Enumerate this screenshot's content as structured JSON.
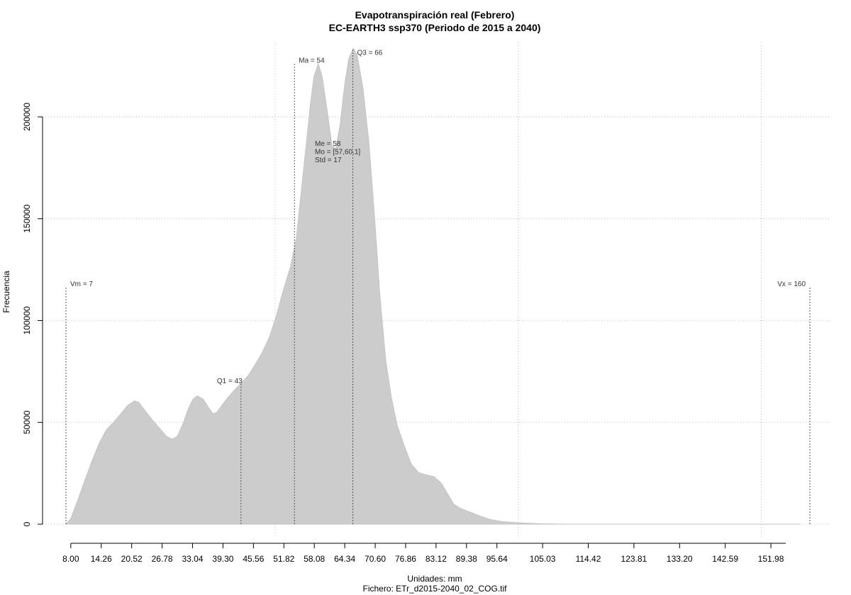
{
  "chart_data": {
    "type": "area",
    "title": "Evapotranspiración real (Febrero)",
    "subtitle": "EC-EARTH3 ssp370 (Periodo de 2015 a 2040)",
    "x_label": "Unidades: mm",
    "caption": "Fichero: ETr_d2015-2040_02_COG.tif",
    "y_label": "Frecuencia",
    "color": "#cccccc",
    "x": [
      7,
      8,
      9.5,
      10.9,
      12.4,
      13.9,
      15.3,
      16.8,
      18.2,
      19.7,
      21.1,
      22,
      23.3,
      24.8,
      26.3,
      27.7,
      28.9,
      29.9,
      31.1,
      32.1,
      33.1,
      34,
      35.2,
      36.2,
      37.2,
      37.9,
      38.9,
      40.1,
      41.6,
      43,
      44.5,
      45.9,
      47.4,
      48.9,
      50.3,
      51.8,
      53.2,
      54.4,
      55.4,
      56.4,
      57.3,
      58,
      58.9,
      59.7,
      60.8,
      61.7,
      62.5,
      63.4,
      64.3,
      65.2,
      66.1,
      66.9,
      68.1,
      69.3,
      70.4,
      71.6,
      72.8,
      73.9,
      75.1,
      76.6,
      78,
      79.5,
      80.9,
      82.7,
      84.2,
      85.3,
      86.8,
      88.2,
      89.7,
      91.9,
      94.1,
      96.3,
      99.9,
      104.3,
      110,
      158
    ],
    "values": [
      0,
      2800,
      12200,
      21600,
      31300,
      40000,
      46300,
      50100,
      53900,
      58400,
      60500,
      59800,
      55600,
      51100,
      47000,
      43100,
      41700,
      43100,
      49400,
      56300,
      61200,
      63000,
      61500,
      57700,
      54300,
      54600,
      57700,
      61600,
      65700,
      69200,
      73000,
      78300,
      84500,
      92200,
      102600,
      115800,
      126600,
      140900,
      163500,
      186100,
      206900,
      219800,
      226100,
      219800,
      201700,
      186100,
      184300,
      196500,
      215600,
      228800,
      233700,
      230300,
      213900,
      187800,
      153000,
      111300,
      80000,
      62600,
      48700,
      38300,
      29600,
      25400,
      24300,
      23300,
      20200,
      15700,
      9700,
      7700,
      6300,
      4200,
      2400,
      1400,
      700,
      200,
      0,
      0
    ],
    "xlim": [
      2.19,
      164.08
    ],
    "ylim": [
      -6957,
      236522
    ],
    "xticks": [
      {
        "value": 8,
        "label": "8.00"
      },
      14.26,
      20.52,
      26.78,
      33.04,
      {
        "value": 39.3,
        "label": "39.30"
      },
      45.56,
      51.82,
      58.08,
      64.34,
      {
        "value": 70.6,
        "label": "70.60"
      },
      76.86,
      83.12,
      89.38,
      95.64,
      105.03,
      114.42,
      123.81,
      {
        "value": 133.2,
        "label": "133.20"
      },
      142.59,
      151.98
    ],
    "yticks": [
      0,
      50000,
      100000,
      150000,
      200000
    ],
    "xgrid": [
      50,
      100,
      150
    ],
    "grid": true,
    "markers": [
      {
        "label": "Vm = 7",
        "x": 7
      },
      {
        "label": "Q1 = 43",
        "x": 43
      },
      {
        "label": "Ma = 54",
        "x": 54
      },
      {
        "label": "Q3 = 66",
        "x": 66
      },
      {
        "label": "Vx = 160",
        "x": 160
      }
    ],
    "stats": [
      "Me = 58",
      "Mo = [57,60.1]",
      "Std = 17"
    ]
  }
}
